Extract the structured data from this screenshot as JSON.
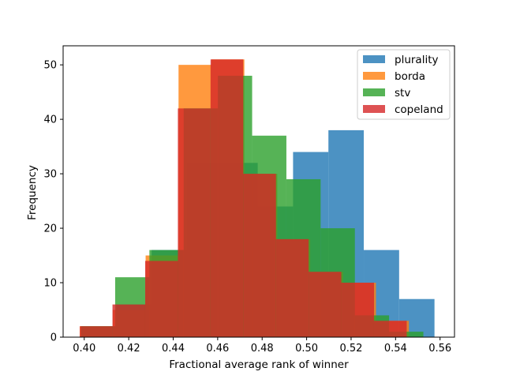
{
  "chart_data": {
    "type": "bar",
    "subtype": "overlapping-histogram",
    "title": "",
    "xlabel": "Fractional average rank of winner",
    "ylabel": "Frequency",
    "xlim": [
      0.3905,
      0.5665
    ],
    "ylim": [
      0,
      53.5
    ],
    "xticks": [
      0.4,
      0.42,
      0.44,
      0.46,
      0.48,
      0.5,
      0.52,
      0.54,
      0.56
    ],
    "xtick_labels": [
      "0.40",
      "0.42",
      "0.44",
      "0.46",
      "0.48",
      "0.50",
      "0.52",
      "0.54",
      "0.56"
    ],
    "yticks": [
      0,
      10,
      20,
      30,
      40,
      50
    ],
    "ytick_labels": [
      "0",
      "10",
      "20",
      "30",
      "40",
      "50"
    ],
    "grid": false,
    "legend_position": "top-right",
    "bar_opacity": 0.8,
    "series": [
      {
        "name": "plurality",
        "color": "#1f77b4",
        "bin_edges": [
          0.3985,
          0.4144,
          0.4303,
          0.4462,
          0.4621,
          0.478,
          0.4939,
          0.5098,
          0.5257,
          0.5416,
          0.5575
        ],
        "counts": [
          2,
          6,
          16,
          32,
          32,
          24,
          34,
          38,
          16,
          7
        ]
      },
      {
        "name": "borda",
        "color": "#ff7f0e",
        "bin_edges": [
          0.398,
          0.4128,
          0.4276,
          0.4424,
          0.4572,
          0.472,
          0.4868,
          0.5016,
          0.5164,
          0.5312,
          0.546
        ],
        "counts": [
          2,
          5,
          15,
          50,
          51,
          30,
          18,
          12,
          10,
          3
        ]
      },
      {
        "name": "stv",
        "color": "#2ca02c",
        "bin_edges": [
          0.3985,
          0.4139,
          0.4293,
          0.4447,
          0.4601,
          0.4755,
          0.4909,
          0.5063,
          0.5217,
          0.5371,
          0.5525
        ],
        "counts": [
          2,
          11,
          16,
          42,
          48,
          37,
          29,
          20,
          4,
          1
        ]
      },
      {
        "name": "copeland",
        "color": "#d62728",
        "bin_edges": [
          0.398,
          0.4127,
          0.4274,
          0.4421,
          0.4568,
          0.4715,
          0.4862,
          0.5009,
          0.5156,
          0.5303,
          0.545
        ],
        "counts": [
          2,
          6,
          14,
          42,
          51,
          30,
          18,
          12,
          10,
          3
        ]
      }
    ]
  }
}
